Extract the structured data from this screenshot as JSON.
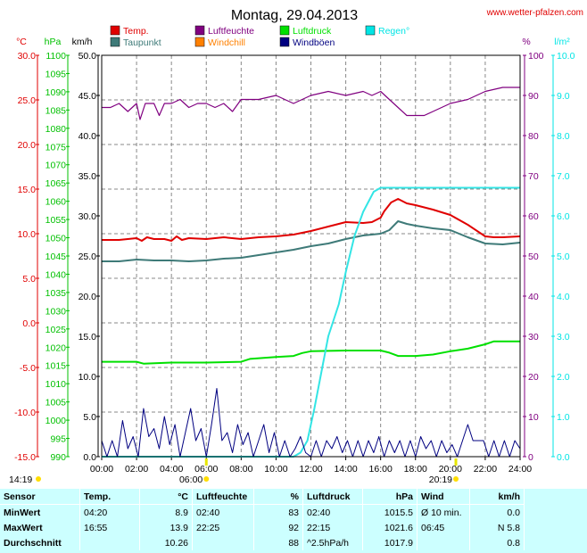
{
  "header": {
    "title": "Montag, 29.04.2013",
    "site": "www.wetter-pfalzen.com"
  },
  "colors": {
    "temp": "#e00000",
    "dew": "#3e7a78",
    "humidity": "#800080",
    "windchill": "#ff8000",
    "pressure": "#00e000",
    "gust": "#000080",
    "rain": "#33e5e5",
    "frame": "#000000",
    "grid": "#888888",
    "stats_bg": "#ccffff"
  },
  "legend": [
    {
      "key": "temp",
      "label": "Temp.",
      "color": "#e00000"
    },
    {
      "key": "dew",
      "label": "Taupunkt",
      "color": "#3e7a78"
    },
    {
      "key": "humidity",
      "label": "Luftfeuchte",
      "color": "#800080"
    },
    {
      "key": "windchill",
      "label": "Windchill",
      "color": "#ff8000"
    },
    {
      "key": "pressure",
      "label": "Luftdruck",
      "color": "#00e000"
    },
    {
      "key": "gust",
      "label": "Windböen",
      "color": "#000080"
    },
    {
      "key": "rain",
      "label": "Regen°",
      "color": "#00e5e5"
    }
  ],
  "axes": {
    "temp": {
      "unit": "°C",
      "color": "#e00000",
      "min": -15,
      "max": 30,
      "step": 5,
      "decimals": 1
    },
    "pressure": {
      "unit": "hPa",
      "color": "#00c000",
      "min": 990,
      "max": 1100,
      "step": 5,
      "decimals": 0
    },
    "wind": {
      "unit": "km/h",
      "color": "#000000",
      "min": 0,
      "max": 50,
      "step": 5,
      "decimals": 1
    },
    "humidity": {
      "unit": "%",
      "color": "#800080",
      "min": 0,
      "max": 100,
      "step": 10,
      "decimals": 0
    },
    "rain": {
      "unit": "l/m²",
      "color": "#00e5e5",
      "min": 0,
      "max": 10,
      "step": 1,
      "decimals": 1
    }
  },
  "chart_data": {
    "type": "line",
    "title": "Montag, 29.04.2013",
    "x_ticks": [
      "00:00",
      "02:00",
      "04:00",
      "06:00",
      "08:00",
      "10:00",
      "12:00",
      "14:00",
      "16:00",
      "18:00",
      "20:00",
      "22:00",
      "24:00"
    ],
    "x_range_hours": [
      0,
      24
    ],
    "grid": true,
    "sun": {
      "sunrise": "06:00",
      "sunset": "20:19",
      "left_label": "14:19",
      "sunrise_label": "06:00",
      "sunset_label": "20:19"
    },
    "series": [
      {
        "name": "Temp.",
        "key": "temp",
        "axis": "temp",
        "x": [
          0,
          1,
          2,
          2.3,
          2.6,
          3,
          3.6,
          4,
          4.3,
          4.6,
          5,
          6,
          7,
          8,
          9,
          10,
          11,
          12,
          13,
          14,
          15,
          15.5,
          16,
          16.2,
          16.6,
          17,
          17.5,
          18,
          19,
          20,
          21,
          22,
          22.5,
          23,
          24
        ],
        "y": [
          9.3,
          9.3,
          9.5,
          9.2,
          9.6,
          9.4,
          9.4,
          9.2,
          9.7,
          9.3,
          9.5,
          9.4,
          9.6,
          9.4,
          9.6,
          9.7,
          9.9,
          10.3,
          10.8,
          11.3,
          11.2,
          11.3,
          11.8,
          12.5,
          13.5,
          13.9,
          13.4,
          13.2,
          12.7,
          12.1,
          11.0,
          9.7,
          9.6,
          9.6,
          9.7
        ]
      },
      {
        "name": "Taupunkt",
        "key": "dew",
        "axis": "temp",
        "x": [
          0,
          1,
          2,
          3,
          4,
          5,
          6,
          7,
          8,
          9,
          10,
          11,
          12,
          13,
          14,
          15,
          16,
          16.5,
          17,
          17.5,
          18,
          19,
          20,
          21,
          22,
          23,
          24
        ],
        "y": [
          6.9,
          6.9,
          7.1,
          7.0,
          7.0,
          6.9,
          7.0,
          7.2,
          7.3,
          7.6,
          7.9,
          8.2,
          8.6,
          8.9,
          9.4,
          9.8,
          10.0,
          10.4,
          11.4,
          11.1,
          10.9,
          10.6,
          10.4,
          9.6,
          8.9,
          8.8,
          9.0
        ]
      },
      {
        "name": "Luftfeuchte",
        "key": "humidity",
        "axis": "humidity",
        "x": [
          0,
          0.5,
          1,
          1.5,
          2,
          2.2,
          2.5,
          3,
          3.3,
          3.6,
          4,
          4.5,
          5,
          5.5,
          6,
          6.5,
          7,
          7.5,
          8,
          9,
          10,
          11,
          12,
          13,
          14,
          15,
          15.5,
          16,
          16.5,
          17,
          17.5,
          18,
          18.5,
          19,
          20,
          21,
          22,
          23,
          24
        ],
        "y": [
          87,
          87,
          88,
          86,
          88,
          84,
          88,
          88,
          85,
          88,
          88,
          89,
          87,
          88,
          88,
          87,
          88,
          86,
          89,
          89,
          90,
          88,
          90,
          91,
          90,
          91,
          90,
          91,
          89,
          87,
          85,
          85,
          85,
          86,
          88,
          89,
          91,
          92,
          92
        ]
      },
      {
        "name": "Luftdruck",
        "key": "pressure",
        "axis": "pressure",
        "x": [
          0,
          2,
          2.4,
          4,
          6,
          8,
          8.5,
          10,
          11,
          11.5,
          12,
          13,
          14,
          15,
          16,
          16.5,
          17,
          18,
          19,
          20,
          21,
          22,
          22.5,
          23,
          24
        ],
        "y": [
          1016.0,
          1016.0,
          1015.5,
          1015.8,
          1015.8,
          1016.0,
          1016.8,
          1017.3,
          1017.6,
          1018.4,
          1018.9,
          1019.0,
          1019.1,
          1019.1,
          1019.1,
          1018.5,
          1017.6,
          1017.6,
          1018.0,
          1018.9,
          1019.6,
          1020.8,
          1021.6,
          1021.6,
          1021.6
        ]
      },
      {
        "name": "Regen°",
        "key": "rain",
        "axis": "rain",
        "x": [
          0,
          10,
          11,
          11.4,
          11.8,
          12.2,
          12.6,
          13,
          13.6,
          14,
          14.5,
          15,
          15.6,
          16,
          16.3,
          16.6,
          17,
          18,
          20,
          22,
          24
        ],
        "y": [
          0,
          0,
          0,
          0.1,
          0.4,
          1.2,
          2.1,
          3.0,
          3.8,
          4.6,
          5.5,
          6.1,
          6.6,
          6.7,
          6.7,
          6.7,
          6.7,
          6.7,
          6.7,
          6.7,
          6.7
        ]
      },
      {
        "name": "Windböen",
        "key": "gust",
        "axis": "wind",
        "x": [
          0,
          0.3,
          0.6,
          0.9,
          1.2,
          1.5,
          1.8,
          2.1,
          2.4,
          2.7,
          3,
          3.3,
          3.6,
          3.9,
          4.2,
          4.5,
          4.8,
          5.1,
          5.4,
          5.7,
          6,
          6.3,
          6.6,
          6.9,
          7.2,
          7.5,
          7.8,
          8.1,
          8.4,
          8.7,
          9,
          9.3,
          9.6,
          9.9,
          10.2,
          10.5,
          10.8,
          11.1,
          11.4,
          11.7,
          12,
          12.3,
          12.6,
          12.9,
          13.2,
          13.5,
          13.8,
          14.1,
          14.4,
          14.7,
          15,
          15.3,
          15.6,
          15.9,
          16.2,
          16.5,
          16.8,
          17.1,
          17.4,
          17.7,
          18,
          18.3,
          18.6,
          18.9,
          19.2,
          19.5,
          19.8,
          20.1,
          20.4,
          20.7,
          21,
          21.3,
          21.6,
          21.9,
          22.2,
          22.5,
          22.8,
          23.1,
          23.4,
          23.7,
          24
        ],
        "y": [
          2.0,
          0,
          2.0,
          0,
          4.5,
          1.0,
          2.5,
          0,
          6.0,
          2.5,
          3.5,
          1.0,
          5.0,
          1.5,
          4.0,
          0,
          3.0,
          6.0,
          2.0,
          3.5,
          0,
          4.0,
          8.5,
          2.0,
          3.0,
          0.5,
          4.0,
          1.5,
          3.0,
          0,
          2.0,
          4.0,
          0.5,
          3.0,
          0,
          2.0,
          0,
          1.0,
          2.5,
          0.5,
          0,
          2.0,
          0,
          2.0,
          1.0,
          2.5,
          0.5,
          2.0,
          0,
          2.0,
          0,
          2.0,
          0.5,
          2.5,
          0,
          2.0,
          0.5,
          2.0,
          0,
          2.0,
          0,
          2.5,
          1.0,
          2.0,
          0,
          2.0,
          0.5,
          1.5,
          0,
          2.0,
          4.0,
          2.0,
          2.0,
          2.0,
          0,
          2.0,
          0,
          2.0,
          0,
          2.0,
          1.0
        ]
      }
    ]
  },
  "stats": {
    "header": {
      "sensor": "Sensor",
      "temp": "Temp.",
      "temp_unit": "°C",
      "hum": "Luftfeuchte",
      "hum_unit": "%",
      "press": "Luftdruck",
      "press_unit": "hPa",
      "wind": "Wind",
      "wind_unit": "km/h"
    },
    "rows": [
      {
        "label": "MinWert",
        "temp_time": "04:20",
        "temp_val": "8.9",
        "hum_time": "02:40",
        "hum_val": "83",
        "press_time": "02:40",
        "press_val": "1015.5",
        "wind_time": "Ø 10 min.",
        "wind_val": "0.0"
      },
      {
        "label": "MaxWert",
        "temp_time": "16:55",
        "temp_val": "13.9",
        "hum_time": "22:25",
        "hum_val": "92",
        "press_time": "22:15",
        "press_val": "1021.6",
        "wind_time": "06:45",
        "wind_val": "N 5.8"
      },
      {
        "label": "Durchschnitt",
        "temp_time": "",
        "temp_val": "10.26",
        "hum_time": "",
        "hum_val": "88",
        "press_time": "^2.5hPa/h",
        "press_val": "1017.9",
        "wind_time": "",
        "wind_val": "0.8"
      }
    ]
  }
}
